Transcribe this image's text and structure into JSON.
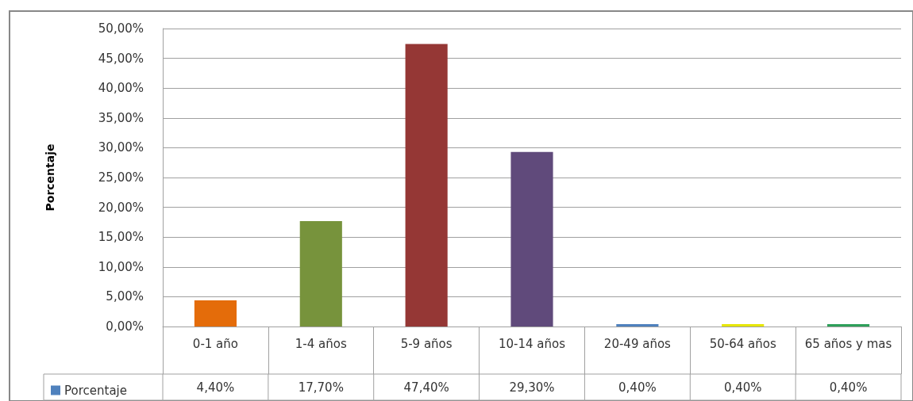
{
  "chart_data": {
    "type": "bar",
    "ylabel": "Porcentaje",
    "categories": [
      "0-1 año",
      "1-4 años",
      "5-9 años",
      "10-14 años",
      "20-49 años",
      "50-64 años",
      "65 años y mas"
    ],
    "series": [
      {
        "name": "Porcentaje",
        "color": "#4f81bd",
        "colors": [
          "#e46c0a",
          "#77933c",
          "#953735",
          "#604a7b",
          "#4f81bd",
          "#e6e600",
          "#2ea05a"
        ],
        "values": [
          4.4,
          17.7,
          47.4,
          29.3,
          0.4,
          0.4,
          0.4
        ],
        "value_labels": [
          "4,40%",
          "17,70%",
          "47,40%",
          "29,30%",
          "0,40%",
          "0,40%",
          "0,40%"
        ]
      }
    ],
    "ylim": [
      0,
      50
    ],
    "yticks": [
      {
        "value": 0,
        "label": "0,00%"
      },
      {
        "value": 5,
        "label": "5,00%"
      },
      {
        "value": 10,
        "label": "10,00%"
      },
      {
        "value": 15,
        "label": "15,00%"
      },
      {
        "value": 20,
        "label": "20,00%"
      },
      {
        "value": 25,
        "label": "25,00%"
      },
      {
        "value": 30,
        "label": "30,00%"
      },
      {
        "value": 35,
        "label": "35,00%"
      },
      {
        "value": 40,
        "label": "40,00%"
      },
      {
        "value": 45,
        "label": "45,00%"
      },
      {
        "value": 50,
        "label": "50,00%"
      }
    ],
    "grid": "y",
    "legend": "bottom left"
  }
}
